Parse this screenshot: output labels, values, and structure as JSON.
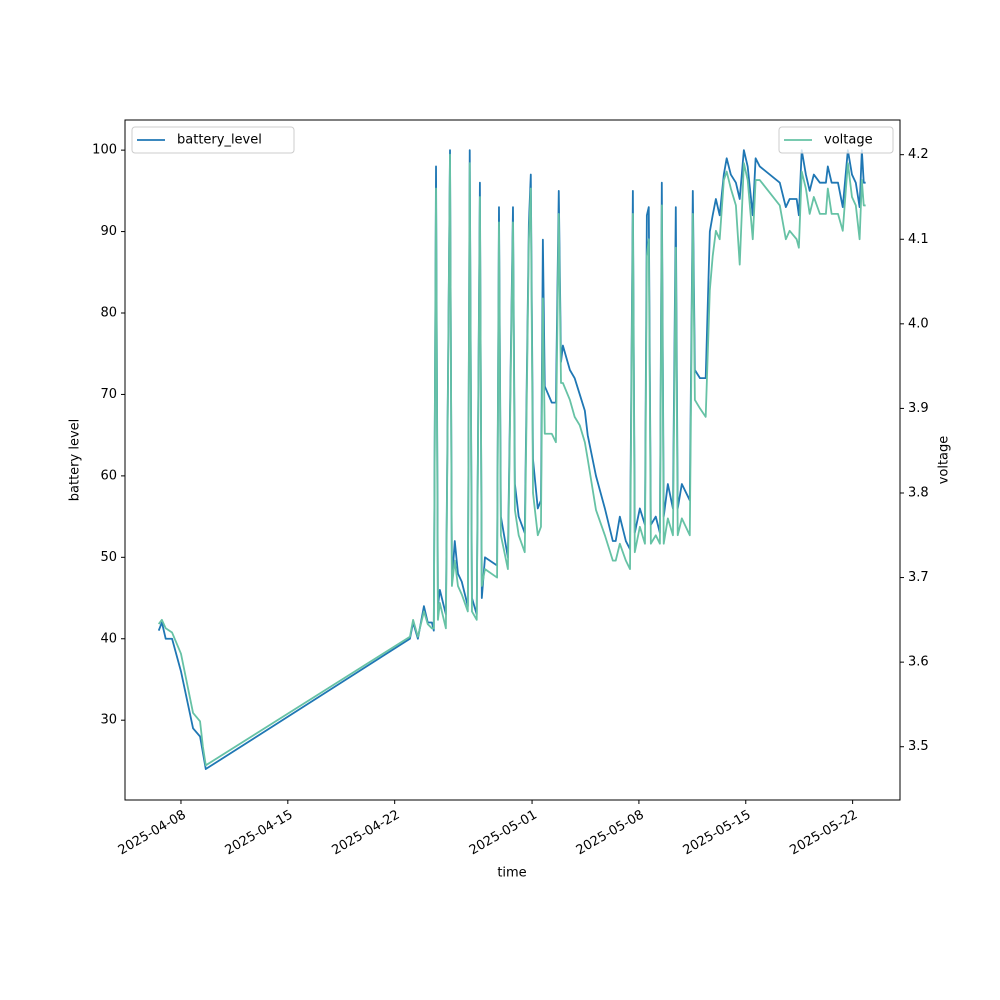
{
  "chart_data": {
    "type": "line",
    "xlabel": "time",
    "ylabel": "battery level",
    "y2label": "voltage",
    "x": [
      "2025-04-06 13:00",
      "2025-04-06 18:00",
      "2025-04-07 00:00",
      "2025-04-07 10:00",
      "2025-04-08 00:00",
      "2025-04-08 19:00",
      "2025-04-09 06:00",
      "2025-04-09 10:30",
      "2025-04-09 15:00",
      "2025-04-23 00:00",
      "2025-04-23 05:00",
      "2025-04-23 12:30",
      "2025-04-23 22:00",
      "2025-04-24 04:00",
      "2025-04-24 10:30",
      "2025-04-24 13:30",
      "2025-04-24 17:00",
      "2025-04-24 20:00",
      "2025-04-24 23:00",
      "2025-04-25 08:30",
      "2025-04-25 15:00",
      "2025-04-25 18:00",
      "2025-04-25 22:30",
      "2025-04-26 03:30",
      "2025-04-26 09:30",
      "2025-04-26 19:00",
      "2025-04-26 22:00",
      "2025-04-27 01:30",
      "2025-04-27 09:00",
      "2025-04-27 14:00",
      "2025-04-27 17:00",
      "2025-04-27 22:00",
      "2025-04-28 17:00",
      "2025-04-28 20:00",
      "2025-04-28 23:00",
      "2025-04-29 10:00",
      "2025-04-29 18:00",
      "2025-04-29 21:00",
      "2025-04-30 03:00",
      "2025-04-30 12:30",
      "2025-04-30 19:00",
      "2025-04-30 22:00",
      "2025-05-01 01:30",
      "2025-05-01 09:00",
      "2025-05-01 14:00",
      "2025-05-01 17:00",
      "2025-05-01 20:00",
      "2025-05-02 07:00",
      "2025-05-02 13:30",
      "2025-05-02 18:00",
      "2025-05-02 21:30",
      "2025-05-03 00:30",
      "2025-05-03 11:30",
      "2025-05-03 19:00",
      "2025-05-04 03:00",
      "2025-05-04 11:00",
      "2025-05-04 15:30",
      "2025-05-05 04:30",
      "2025-05-05 18:30",
      "2025-05-06 07:00",
      "2025-05-06 11:30",
      "2025-05-06 18:00",
      "2025-05-07 03:30",
      "2025-05-07 10:00",
      "2025-05-07 14:30",
      "2025-05-07 17:30",
      "2025-05-08 01:30",
      "2025-05-08 09:30",
      "2025-05-08 12:30",
      "2025-05-08 15:30",
      "2025-05-08 18:45",
      "2025-05-09 02:30",
      "2025-05-09 09:00",
      "2025-05-09 12:00",
      "2025-05-09 15:00",
      "2025-05-09 21:30",
      "2025-05-10 05:30",
      "2025-05-10 10:00",
      "2025-05-10 13:00",
      "2025-05-10 19:30",
      "2025-05-11 08:00",
      "2025-05-11 12:45",
      "2025-05-11 16:00",
      "2025-05-12 00:00",
      "2025-05-12 09:00",
      "2025-05-12 15:30",
      "2025-05-12 20:00",
      "2025-05-13 01:00",
      "2025-05-13 07:00",
      "2025-05-13 13:30",
      "2025-05-13 18:00",
      "2025-05-14 00:30",
      "2025-05-14 08:30",
      "2025-05-14 14:30",
      "2025-05-14 21:00",
      "2025-05-15 03:00",
      "2025-05-15 11:00",
      "2025-05-15 15:30",
      "2025-05-15 22:00",
      "2025-05-17 05:30",
      "2025-05-17 15:00",
      "2025-05-17 21:00",
      "2025-05-18 08:00",
      "2025-05-18 11:30",
      "2025-05-18 16:00",
      "2025-05-18 22:30",
      "2025-05-19 04:30",
      "2025-05-19 11:00",
      "2025-05-19 20:30",
      "2025-05-20 06:00",
      "2025-05-20 09:00",
      "2025-05-20 15:00",
      "2025-05-21 01:00",
      "2025-05-21 08:30",
      "2025-05-21 16:30",
      "2025-05-21 23:00",
      "2025-05-22 05:00",
      "2025-05-22 11:00",
      "2025-05-22 14:30",
      "2025-05-22 17:30",
      "2025-05-22 20:30"
    ],
    "series": [
      {
        "name": "battery_level",
        "color": "#1f77b4",
        "axis": "y",
        "legend": "upper left",
        "values": [
          41,
          42,
          40,
          40,
          36,
          29,
          28,
          26,
          24,
          40,
          42,
          40,
          44,
          42,
          42,
          41,
          98,
          44,
          46,
          43,
          100,
          47,
          52,
          48,
          47,
          44,
          100,
          45,
          43,
          96,
          45,
          50,
          49,
          93,
          55,
          50,
          93,
          59,
          55,
          53,
          91,
          97,
          62,
          56,
          57,
          89,
          71,
          69,
          69,
          95,
          74,
          76,
          73,
          72,
          70,
          68,
          65,
          60,
          56,
          52,
          52,
          55,
          52,
          51,
          95,
          53,
          56,
          54,
          92,
          93,
          54,
          55,
          53,
          96,
          55,
          59,
          56,
          93,
          56,
          59,
          57,
          95,
          73,
          72,
          72,
          90,
          92,
          94,
          92,
          97,
          99,
          97,
          96,
          94,
          100,
          98,
          92,
          99,
          98,
          96,
          93,
          94,
          94,
          92,
          100,
          97,
          95,
          97,
          96,
          96,
          98,
          96,
          96,
          93,
          100,
          97,
          96,
          93,
          100,
          96,
          96
        ]
      },
      {
        "name": "voltage",
        "color": "#66c2a5",
        "axis": "y2",
        "legend": "upper right",
        "values": [
          3.645,
          3.65,
          3.64,
          3.635,
          3.61,
          3.54,
          3.53,
          3.5,
          3.478,
          3.63,
          3.65,
          3.63,
          3.66,
          3.645,
          3.64,
          3.64,
          4.16,
          3.65,
          3.67,
          3.64,
          4.2,
          3.69,
          3.72,
          3.69,
          3.68,
          3.66,
          4.19,
          3.66,
          3.65,
          4.15,
          3.69,
          3.71,
          3.7,
          4.12,
          3.75,
          3.71,
          4.12,
          3.78,
          3.75,
          3.73,
          4.1,
          4.16,
          3.8,
          3.75,
          3.76,
          4.03,
          3.87,
          3.87,
          3.86,
          4.13,
          3.93,
          3.93,
          3.91,
          3.89,
          3.88,
          3.86,
          3.84,
          3.78,
          3.75,
          3.72,
          3.72,
          3.74,
          3.72,
          3.71,
          4.13,
          3.73,
          3.76,
          3.74,
          4.08,
          4.1,
          3.74,
          3.75,
          3.74,
          4.14,
          3.74,
          3.77,
          3.75,
          4.09,
          3.75,
          3.77,
          3.75,
          4.13,
          3.91,
          3.9,
          3.89,
          4.04,
          4.08,
          4.11,
          4.1,
          4.17,
          4.18,
          4.16,
          4.14,
          4.07,
          4.19,
          4.17,
          4.1,
          4.17,
          4.17,
          4.14,
          4.1,
          4.11,
          4.1,
          4.09,
          4.18,
          4.16,
          4.13,
          4.15,
          4.13,
          4.13,
          4.16,
          4.13,
          4.13,
          4.11,
          4.19,
          4.15,
          4.14,
          4.1,
          4.17,
          4.14,
          4.14
        ]
      }
    ],
    "xlim": [
      "2025-04-04 08:00",
      "2025-05-25 02:30"
    ],
    "xticks": [
      "2025-04-08",
      "2025-04-15",
      "2025-04-22",
      "2025-05-01",
      "2025-05-08",
      "2025-05-15",
      "2025-05-22"
    ],
    "ylim": [
      20.2,
      103.7
    ],
    "yticks": [
      30,
      40,
      50,
      60,
      70,
      80,
      90,
      100
    ],
    "y2lim": [
      3.437,
      4.241
    ],
    "y2ticks": [
      3.5,
      3.6,
      3.7,
      3.8,
      3.9,
      {
        "value": 4,
        "label": "4.0"
      },
      4.1,
      4.2
    ]
  }
}
